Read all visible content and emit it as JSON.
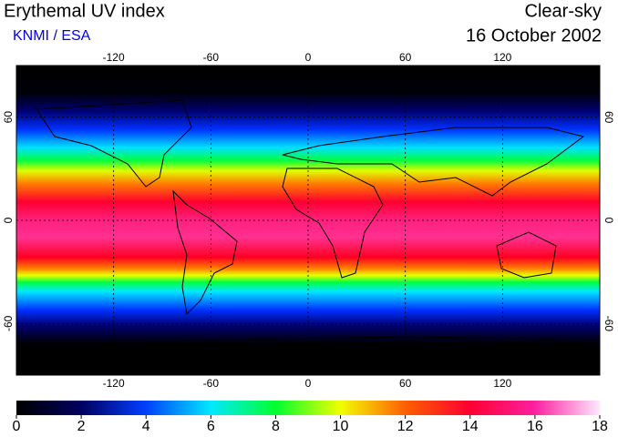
{
  "chart_data": {
    "type": "map",
    "title": "Erythemal UV index",
    "subtitle": "KNMI / ESA",
    "condition": "Clear-sky",
    "date": "16 October 2002",
    "xlim": [
      -180,
      180
    ],
    "xticks": [
      -120,
      -60,
      0,
      60,
      120
    ],
    "ylim": [
      -90,
      90
    ],
    "yticks": [
      -60,
      0,
      60
    ],
    "colorbar_lim": [
      0,
      18
    ],
    "colorbar_ticks": [
      0,
      2,
      4,
      6,
      8,
      10,
      12,
      14,
      16,
      18
    ]
  }
}
